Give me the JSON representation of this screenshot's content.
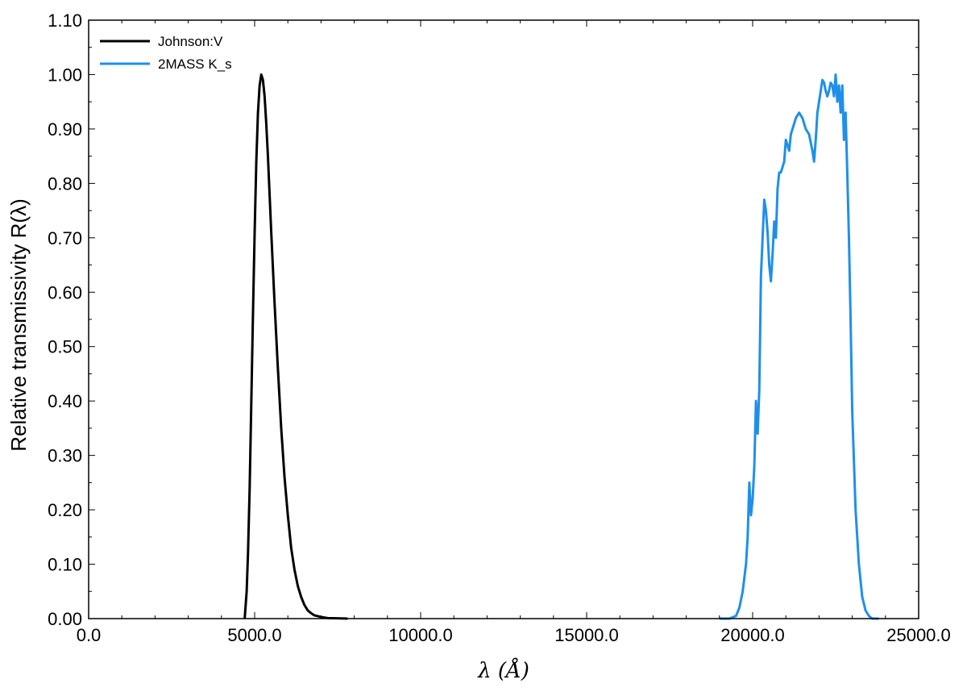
{
  "chart_data": {
    "type": "line",
    "xlabel": "λ (Å)",
    "ylabel": "Relative transmissivity R(λ)",
    "xlim": [
      0,
      25000
    ],
    "ylim": [
      0,
      1.1
    ],
    "x_ticks": [
      "0.0",
      "5000.0",
      "10000.0",
      "15000.0",
      "20000.0",
      "25000.0"
    ],
    "y_ticks": [
      "0.00",
      "0.10",
      "0.20",
      "0.30",
      "0.40",
      "0.50",
      "0.60",
      "0.70",
      "0.80",
      "0.90",
      "1.00",
      "1.10"
    ],
    "grid": false,
    "legend_position": "top-left",
    "series": [
      {
        "name": "Johnson:V",
        "color": "#000000",
        "x": [
          4700,
          4760,
          4800,
          4850,
          4900,
          4950,
          5000,
          5050,
          5100,
          5150,
          5200,
          5250,
          5300,
          5350,
          5400,
          5450,
          5500,
          5600,
          5700,
          5800,
          5900,
          6000,
          6100,
          6200,
          6300,
          6400,
          6500,
          6600,
          6700,
          6800,
          7000,
          7200,
          7500,
          7800
        ],
        "y": [
          0.0,
          0.05,
          0.12,
          0.24,
          0.4,
          0.56,
          0.71,
          0.84,
          0.93,
          0.98,
          1.0,
          0.99,
          0.96,
          0.91,
          0.85,
          0.78,
          0.71,
          0.58,
          0.46,
          0.35,
          0.26,
          0.19,
          0.13,
          0.09,
          0.06,
          0.04,
          0.025,
          0.015,
          0.01,
          0.006,
          0.003,
          0.001,
          0.0005,
          0.0
        ]
      },
      {
        "name": "2MASS K_s",
        "color": "#1f8fea",
        "x": [
          19000,
          19300,
          19500,
          19600,
          19700,
          19800,
          19850,
          19900,
          19950,
          20000,
          20050,
          20100,
          20150,
          20200,
          20250,
          20300,
          20350,
          20400,
          20450,
          20500,
          20550,
          20600,
          20650,
          20700,
          20750,
          20800,
          20850,
          20900,
          20950,
          21000,
          21100,
          21150,
          21200,
          21250,
          21300,
          21400,
          21500,
          21600,
          21700,
          21800,
          21850,
          21900,
          21950,
          22000,
          22050,
          22100,
          22150,
          22200,
          22250,
          22300,
          22350,
          22400,
          22450,
          22500,
          22550,
          22600,
          22650,
          22700,
          22750,
          22800,
          22850,
          22900,
          22950,
          23000,
          23100,
          23200,
          23300,
          23400,
          23500,
          23600,
          23700,
          23800
        ],
        "y": [
          0.0,
          0.0,
          0.005,
          0.02,
          0.05,
          0.1,
          0.15,
          0.25,
          0.19,
          0.22,
          0.28,
          0.4,
          0.34,
          0.42,
          0.63,
          0.7,
          0.77,
          0.75,
          0.71,
          0.65,
          0.62,
          0.67,
          0.73,
          0.7,
          0.79,
          0.82,
          0.82,
          0.83,
          0.84,
          0.88,
          0.86,
          0.89,
          0.9,
          0.91,
          0.92,
          0.93,
          0.92,
          0.9,
          0.89,
          0.86,
          0.84,
          0.88,
          0.93,
          0.95,
          0.97,
          0.99,
          0.985,
          0.97,
          0.96,
          0.97,
          0.985,
          0.98,
          0.96,
          1.0,
          0.95,
          0.98,
          0.93,
          0.98,
          0.88,
          0.93,
          0.82,
          0.7,
          0.55,
          0.38,
          0.2,
          0.1,
          0.04,
          0.015,
          0.005,
          0.0,
          0.0,
          0.0
        ]
      }
    ]
  }
}
